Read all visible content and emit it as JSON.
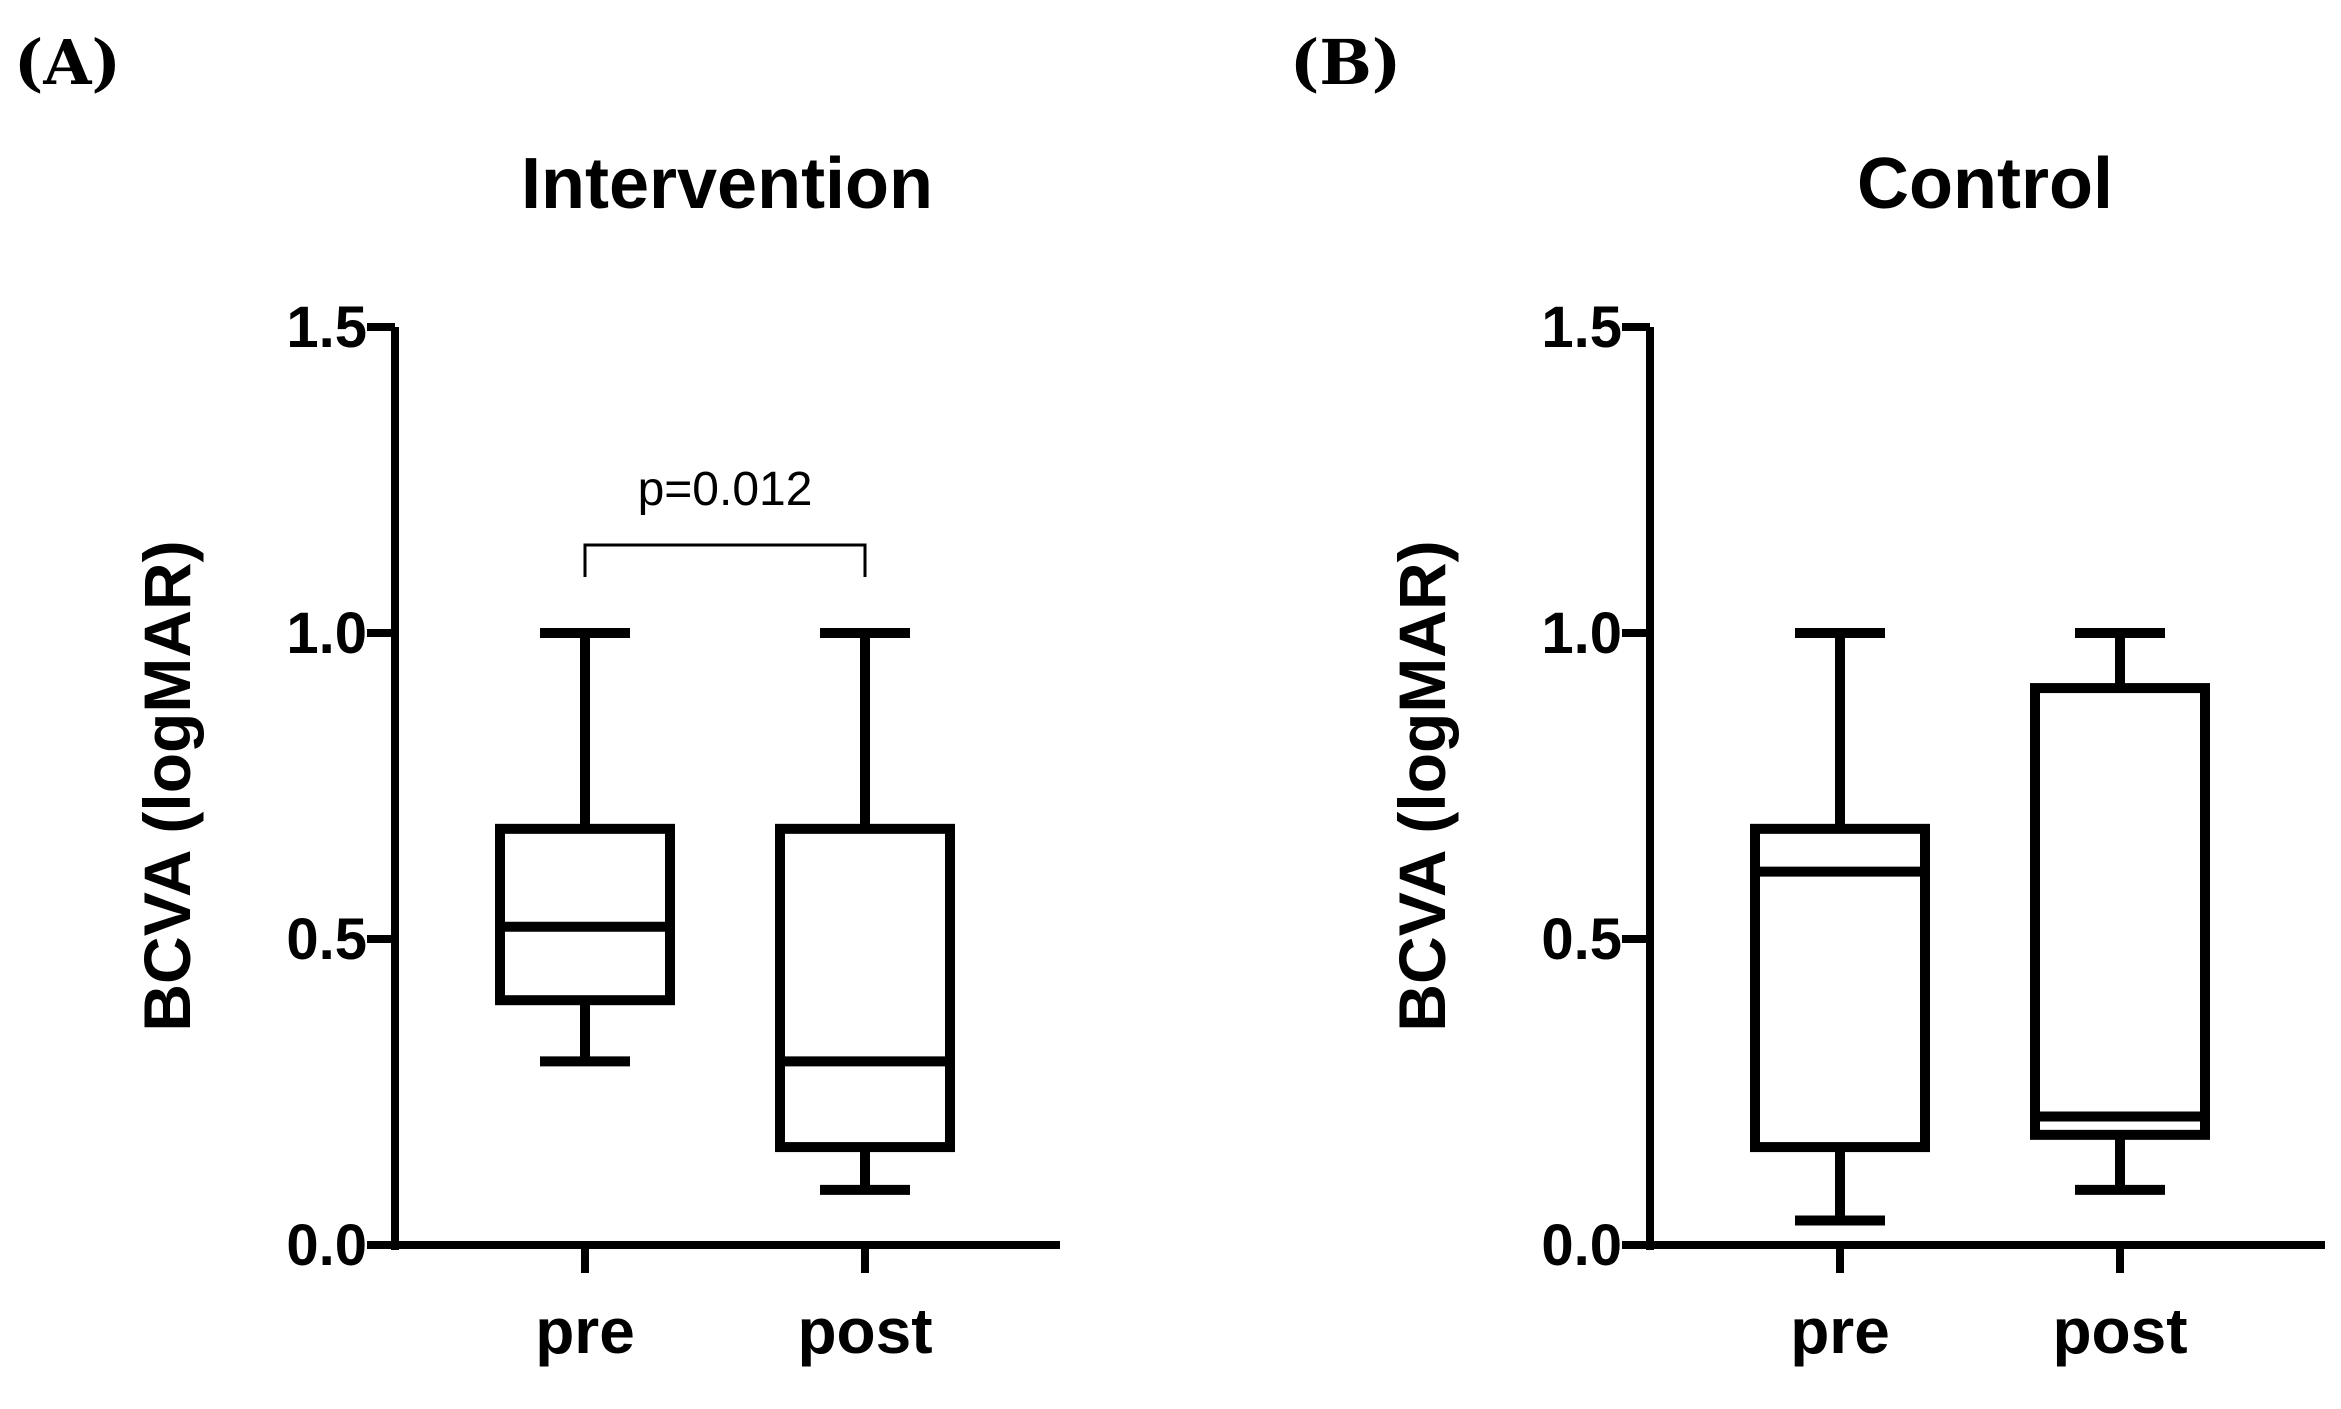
{
  "figure": {
    "panel_a_label": "(A)",
    "panel_b_label": "(B)"
  },
  "chart_data": [
    {
      "type": "box",
      "title": "Intervention",
      "xlabel": "",
      "ylabel": "BCVA (logMAR)",
      "ylim": [
        0,
        1.5
      ],
      "yticks": [
        "0.0",
        "0.5",
        "1.0",
        "1.5"
      ],
      "ytick_values": [
        0,
        0.5,
        1.0,
        1.5
      ],
      "categories": [
        "pre",
        "post"
      ],
      "boxes": [
        {
          "name": "pre",
          "min": 0.3,
          "q1": 0.4,
          "median": 0.52,
          "q3": 0.68,
          "max": 1.0
        },
        {
          "name": "post",
          "min": 0.09,
          "q1": 0.16,
          "median": 0.3,
          "q3": 0.68,
          "max": 1.0
        }
      ],
      "annotation": {
        "text": "p=0.012",
        "between": [
          "pre",
          "post"
        ],
        "y": 1.15
      }
    },
    {
      "type": "box",
      "title": "Control",
      "xlabel": "",
      "ylabel": "BCVA (logMAR)",
      "ylim": [
        0,
        1.5
      ],
      "yticks": [
        "0.0",
        "0.5",
        "1.0",
        "1.5"
      ],
      "ytick_values": [
        0,
        0.5,
        1.0,
        1.5
      ],
      "categories": [
        "pre",
        "post"
      ],
      "boxes": [
        {
          "name": "pre",
          "min": 0.04,
          "q1": 0.16,
          "median": 0.61,
          "q3": 0.68,
          "max": 1.0
        },
        {
          "name": "post",
          "min": 0.09,
          "q1": 0.18,
          "median": 0.21,
          "q3": 0.91,
          "max": 1.0
        }
      ]
    }
  ]
}
